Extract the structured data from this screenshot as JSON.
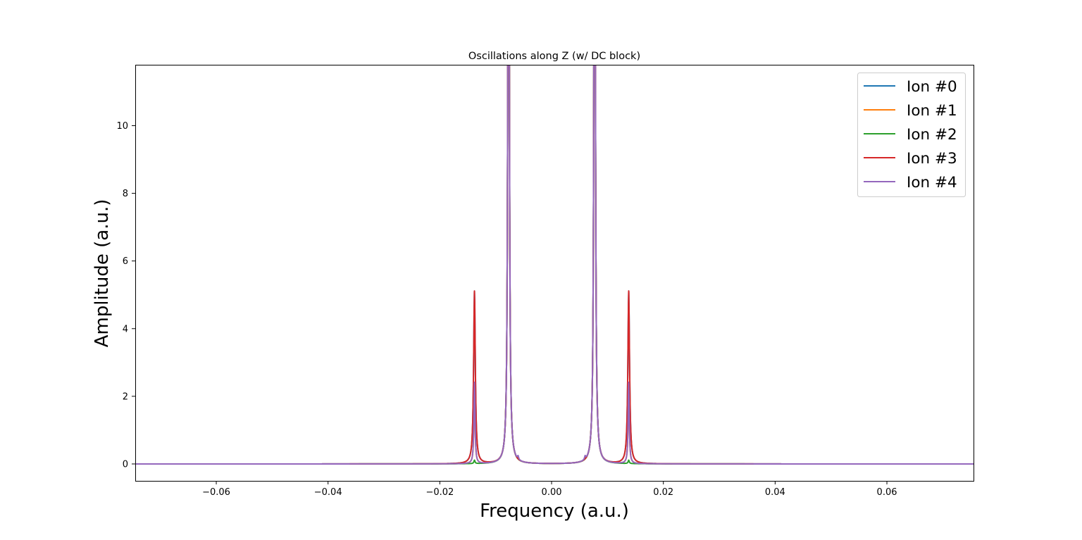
{
  "chart_data": {
    "type": "line",
    "title": "Oscillations along Z (w/ DC block)",
    "xlabel": "Frequency (a.u.)",
    "ylabel": "Amplitude (a.u.)",
    "xlim": [
      -0.0745,
      0.0755
    ],
    "ylim": [
      -0.5,
      11.8
    ],
    "xticks": [
      -0.06,
      -0.04,
      -0.02,
      0.0,
      0.02,
      0.04,
      0.06
    ],
    "xtick_labels": [
      "−0.06",
      "−0.04",
      "−0.02",
      "0.00",
      "0.02",
      "0.04",
      "0.06"
    ],
    "yticks": [
      0,
      2,
      4,
      6,
      8,
      10
    ],
    "ytick_labels": [
      "0",
      "2",
      "4",
      "6",
      "8",
      "10"
    ],
    "grid": false,
    "legend_position": "top-right",
    "legend": [
      "Ion #0",
      "Ion #1",
      "Ion #2",
      "Ion #3",
      "Ion #4"
    ],
    "series": [
      {
        "name": "Ion #0",
        "color": "#1f77b4",
        "peaks": [
          {
            "x": -0.0077,
            "y": 30,
            "w": 0.00012
          },
          {
            "x": 0.0077,
            "y": 30,
            "w": 0.00012
          },
          {
            "x": -0.0138,
            "y": 5.1,
            "w": 0.00018
          },
          {
            "x": 0.0138,
            "y": 5.1,
            "w": 0.00018
          }
        ]
      },
      {
        "name": "Ion #1",
        "color": "#ff7f0e",
        "peaks": [
          {
            "x": -0.0077,
            "y": 30,
            "w": 0.00012
          },
          {
            "x": 0.0077,
            "y": 30,
            "w": 0.00012
          },
          {
            "x": -0.0138,
            "y": 2.4,
            "w": 0.00012
          },
          {
            "x": 0.0138,
            "y": 2.4,
            "w": 0.00012
          }
        ]
      },
      {
        "name": "Ion #2",
        "color": "#2ca02c",
        "peaks": [
          {
            "x": -0.0077,
            "y": 30,
            "w": 0.00012
          },
          {
            "x": 0.0077,
            "y": 30,
            "w": 0.00012
          },
          {
            "x": -0.0138,
            "y": 0.1,
            "w": 0.00012
          },
          {
            "x": 0.0138,
            "y": 0.1,
            "w": 0.00012
          }
        ]
      },
      {
        "name": "Ion #3",
        "color": "#d62728",
        "peaks": [
          {
            "x": -0.0077,
            "y": 30,
            "w": 0.00012
          },
          {
            "x": 0.0077,
            "y": 30,
            "w": 0.00012
          },
          {
            "x": -0.0138,
            "y": 5.1,
            "w": 0.00018
          },
          {
            "x": 0.0138,
            "y": 5.1,
            "w": 0.00018
          }
        ]
      },
      {
        "name": "Ion #4",
        "color": "#9467bd",
        "peaks": [
          {
            "x": -0.0077,
            "y": 30,
            "w": 0.00012
          },
          {
            "x": 0.0077,
            "y": 30,
            "w": 0.00012
          },
          {
            "x": -0.0138,
            "y": 2.4,
            "w": 0.00012
          },
          {
            "x": 0.0138,
            "y": 2.4,
            "w": 0.00012
          },
          {
            "x": -0.006,
            "y": 0.1,
            "w": 0.00012
          },
          {
            "x": 0.006,
            "y": 0.1,
            "w": 0.00012
          }
        ]
      }
    ]
  }
}
